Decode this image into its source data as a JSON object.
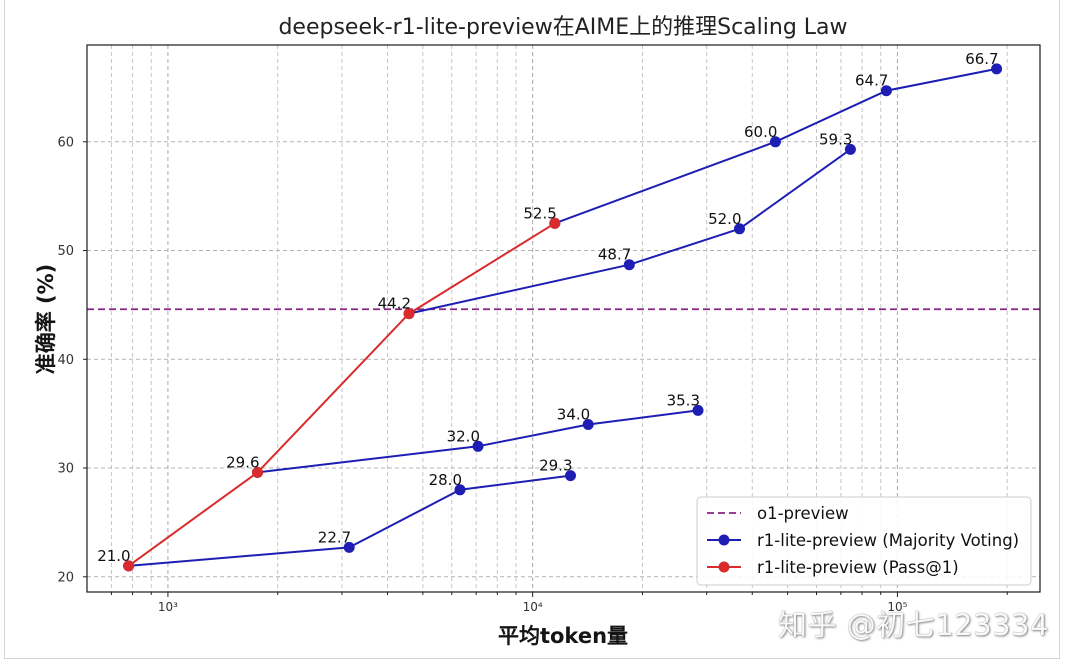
{
  "watermark": "知乎 @初七123334",
  "chart_data": {
    "type": "line",
    "title": "deepseek-r1-lite-preview在AIME上的推理Scaling Law",
    "xlabel": "平均token量",
    "ylabel": "准确率 (%)",
    "xscale": "log",
    "xlim": [
      600,
      246000
    ],
    "ylim": [
      18.6,
      68.9
    ],
    "x_ticks": [
      {
        "value": 1000,
        "label": "10³"
      },
      {
        "value": 10000,
        "label": "10⁴"
      },
      {
        "value": 100000,
        "label": "10⁵"
      }
    ],
    "y_ticks": [
      {
        "value": 20,
        "label": "20"
      },
      {
        "value": 30,
        "label": "30"
      },
      {
        "value": 40,
        "label": "40"
      },
      {
        "value": 50,
        "label": "50"
      },
      {
        "value": 60,
        "label": "60"
      }
    ],
    "grid": true,
    "legend_placement": "lower-right",
    "series": [
      {
        "name": "o1-preview",
        "kind": "reference-line",
        "y": 44.6,
        "color": "#882288",
        "linestyle": "dashed"
      },
      {
        "name": "r1-lite-preview (Majority Voting)",
        "kind": "line",
        "color": "#1e1eb4",
        "marker": "circle",
        "lines": [
          [
            {
              "x": 780,
              "y": 21.0
            },
            {
              "x": 3140,
              "y": 22.7,
              "label": "22.7"
            },
            {
              "x": 6320,
              "y": 28.0,
              "label": "28.0"
            },
            {
              "x": 12700,
              "y": 29.3,
              "label": "29.3"
            }
          ],
          [
            {
              "x": 1760,
              "y": 29.6
            },
            {
              "x": 7080,
              "y": 32.0,
              "label": "32.0"
            },
            {
              "x": 14200,
              "y": 34.0,
              "label": "34.0"
            },
            {
              "x": 28400,
              "y": 35.3,
              "label": "35.3"
            }
          ],
          [
            {
              "x": 4580,
              "y": 44.2
            },
            {
              "x": 18400,
              "y": 48.7,
              "label": "48.7"
            },
            {
              "x": 36900,
              "y": 52.0,
              "label": "52.0"
            },
            {
              "x": 74300,
              "y": 59.3,
              "label": "59.3"
            }
          ],
          [
            {
              "x": 11500,
              "y": 52.5
            },
            {
              "x": 46300,
              "y": 60.0,
              "label": "60.0"
            },
            {
              "x": 93300,
              "y": 64.7,
              "label": "64.7"
            },
            {
              "x": 187000,
              "y": 66.7,
              "label": "66.7"
            }
          ]
        ]
      },
      {
        "name": "r1-lite-preview (Pass@1)",
        "kind": "line",
        "color": "#d92b2b",
        "marker": "circle",
        "points": [
          {
            "x": 780,
            "y": 21.0,
            "label": "21.0"
          },
          {
            "x": 1760,
            "y": 29.6,
            "label": "29.6"
          },
          {
            "x": 4580,
            "y": 44.2,
            "label": "44.2"
          },
          {
            "x": 11500,
            "y": 52.5,
            "label": "52.5"
          }
        ]
      }
    ]
  }
}
